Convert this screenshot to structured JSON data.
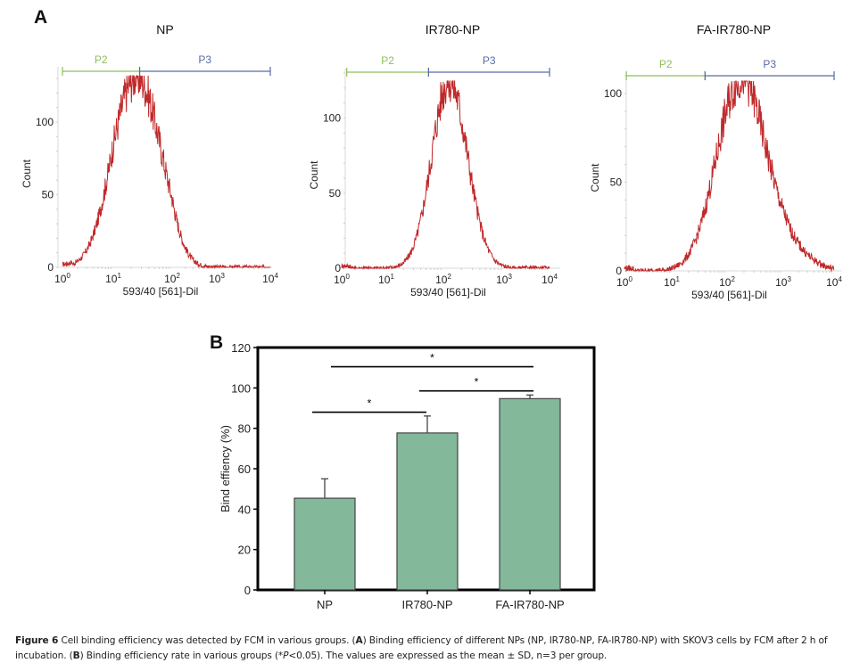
{
  "panel_a_label": "A",
  "panel_b_label": "B",
  "chart_data": [
    {
      "type": "line",
      "subtype": "flow-cytometry-histogram",
      "title": "NP",
      "xlabel": "593/40 [561]-Dil",
      "ylabel": "Count",
      "xscale": "log",
      "xlim": [
        1,
        10000
      ],
      "ylim": [
        0,
        135
      ],
      "xticks": [
        "10^0",
        "10^1",
        "10^2",
        "10^3",
        "10^4"
      ],
      "yticks": [
        0,
        50,
        100
      ],
      "gates": [
        {
          "name": "P2",
          "from": 1,
          "to": 28,
          "color": "#8cbf5a"
        },
        {
          "name": "P3",
          "from": 28,
          "to": 10000,
          "color": "#5a6aa8"
        }
      ],
      "peak_x": 25,
      "peak_count": 132,
      "spread": 0.42,
      "line_color": "#c0282a"
    },
    {
      "type": "line",
      "subtype": "flow-cytometry-histogram",
      "title": "IR780-NP",
      "xlabel": "593/40 [561]-Dil",
      "ylabel": "Count",
      "xscale": "log",
      "xlim": [
        1,
        10000
      ],
      "ylim": [
        0,
        130
      ],
      "xticks": [
        "10^0",
        "10^1",
        "10^2",
        "10^3",
        "10^4"
      ],
      "yticks": [
        0,
        50,
        100
      ],
      "gates": [
        {
          "name": "P2",
          "from": 1.3,
          "to": 55,
          "color": "#8cbf5a"
        },
        {
          "name": "P3",
          "from": 55,
          "to": 10000,
          "color": "#5a6aa8"
        }
      ],
      "peak_x": 125,
      "peak_count": 125,
      "spread": 0.3,
      "line_color": "#c0282a"
    },
    {
      "type": "line",
      "subtype": "flow-cytometry-histogram",
      "title": "FA-IR780-NP",
      "xlabel": "593/40 [561]-Dil",
      "ylabel": "Count",
      "xscale": "log",
      "xlim": [
        1,
        10000
      ],
      "ylim": [
        0,
        110
      ],
      "xticks": [
        "10^0",
        "10^1",
        "10^2",
        "10^3",
        "10^4"
      ],
      "yticks": [
        0,
        50,
        100
      ],
      "gates": [
        {
          "name": "P2",
          "from": 1.1,
          "to": 40,
          "color": "#8cbf5a"
        },
        {
          "name": "P3",
          "from": 40,
          "to": 10000,
          "color": "#5a6aa8"
        }
      ],
      "peak_x": 170,
      "peak_count": 107,
      "spread": 0.42,
      "line_color": "#c0282a"
    },
    {
      "type": "bar",
      "title": "",
      "xlabel": "",
      "ylabel": "Bind effiency (%)",
      "categories": [
        "NP",
        "IR780-NP",
        "FA-IR780-NP"
      ],
      "values": [
        45.4,
        77.7,
        94.7
      ],
      "errors": [
        9.6,
        8.4,
        1.8
      ],
      "ylim": [
        0,
        120
      ],
      "yticks": [
        0,
        20,
        40,
        60,
        80,
        100,
        120
      ],
      "bar_color": "#84b89a",
      "significance": [
        {
          "from": "NP",
          "to": "IR780-NP",
          "label": "*",
          "y": 88
        },
        {
          "from": "NP",
          "to": "FA-IR780-NP",
          "label": "*",
          "y": 110.5
        },
        {
          "from": "IR780-NP",
          "to": "FA-IR780-NP",
          "label": "*",
          "y": 98.5
        }
      ]
    }
  ],
  "caption": {
    "figure_label": "Figure 6",
    "intro": " Cell binding efficiency was detected by FCM in various groups. (",
    "a_label": "A",
    "a_text": ") Binding efficiency of different NPs (NP, IR780-NP, FA-IR780-NP) with SKOV3 cells by FCM after 2 h of incubation. (",
    "b_label": "B",
    "b_text": ") Binding efficiency rate in various groups (*",
    "p_text": "P",
    "end_text": "<0.05). The values are expressed as the mean ± SD, n=3 per group."
  }
}
